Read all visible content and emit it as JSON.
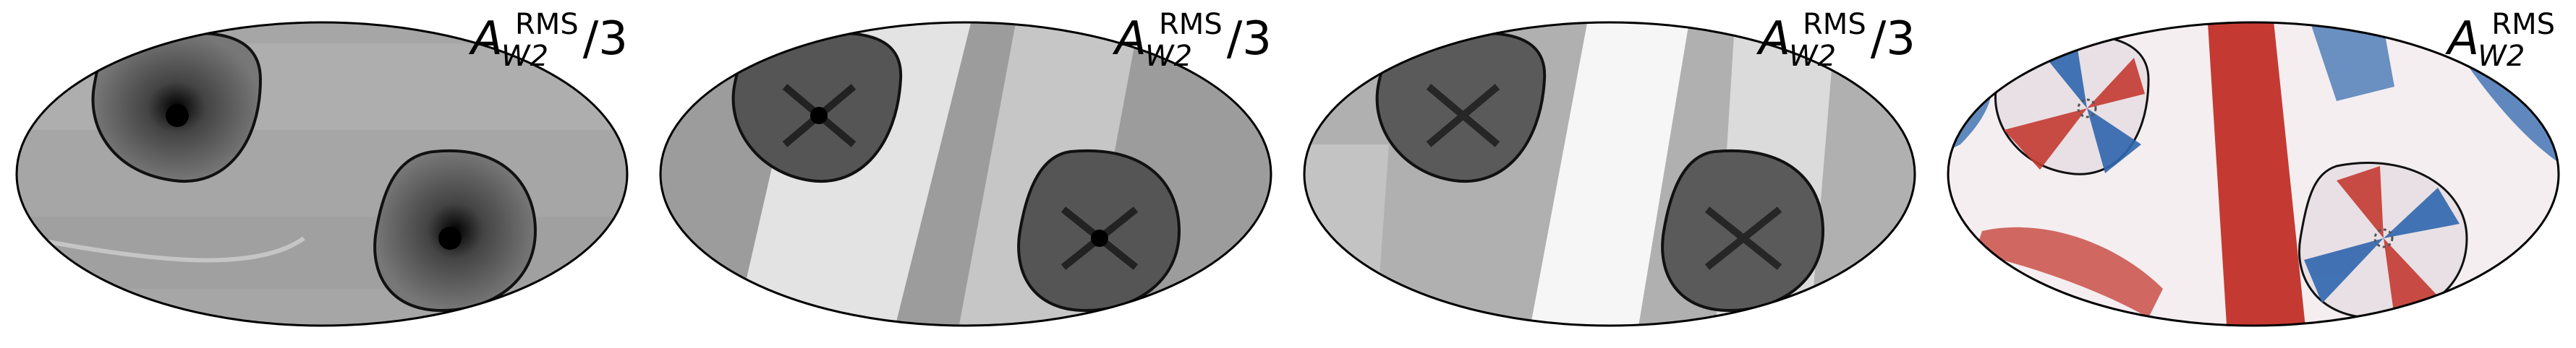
{
  "panels": [
    {
      "label": {
        "base": "A",
        "sub": "W2",
        "sup": "RMS",
        "tail": "/3"
      },
      "colormap": "gray"
    },
    {
      "label": {
        "base": "A",
        "sub": "W2",
        "sup": "RMS",
        "tail": "/3"
      },
      "colormap": "gray"
    },
    {
      "label": {
        "base": "A",
        "sub": "W2",
        "sup": "RMS",
        "tail": "/3"
      },
      "colormap": "gray"
    },
    {
      "label": {
        "base": "A",
        "sub": "W2",
        "sup": "RMS",
        "tail": ""
      },
      "colormap": "diverging red-blue"
    }
  ]
}
